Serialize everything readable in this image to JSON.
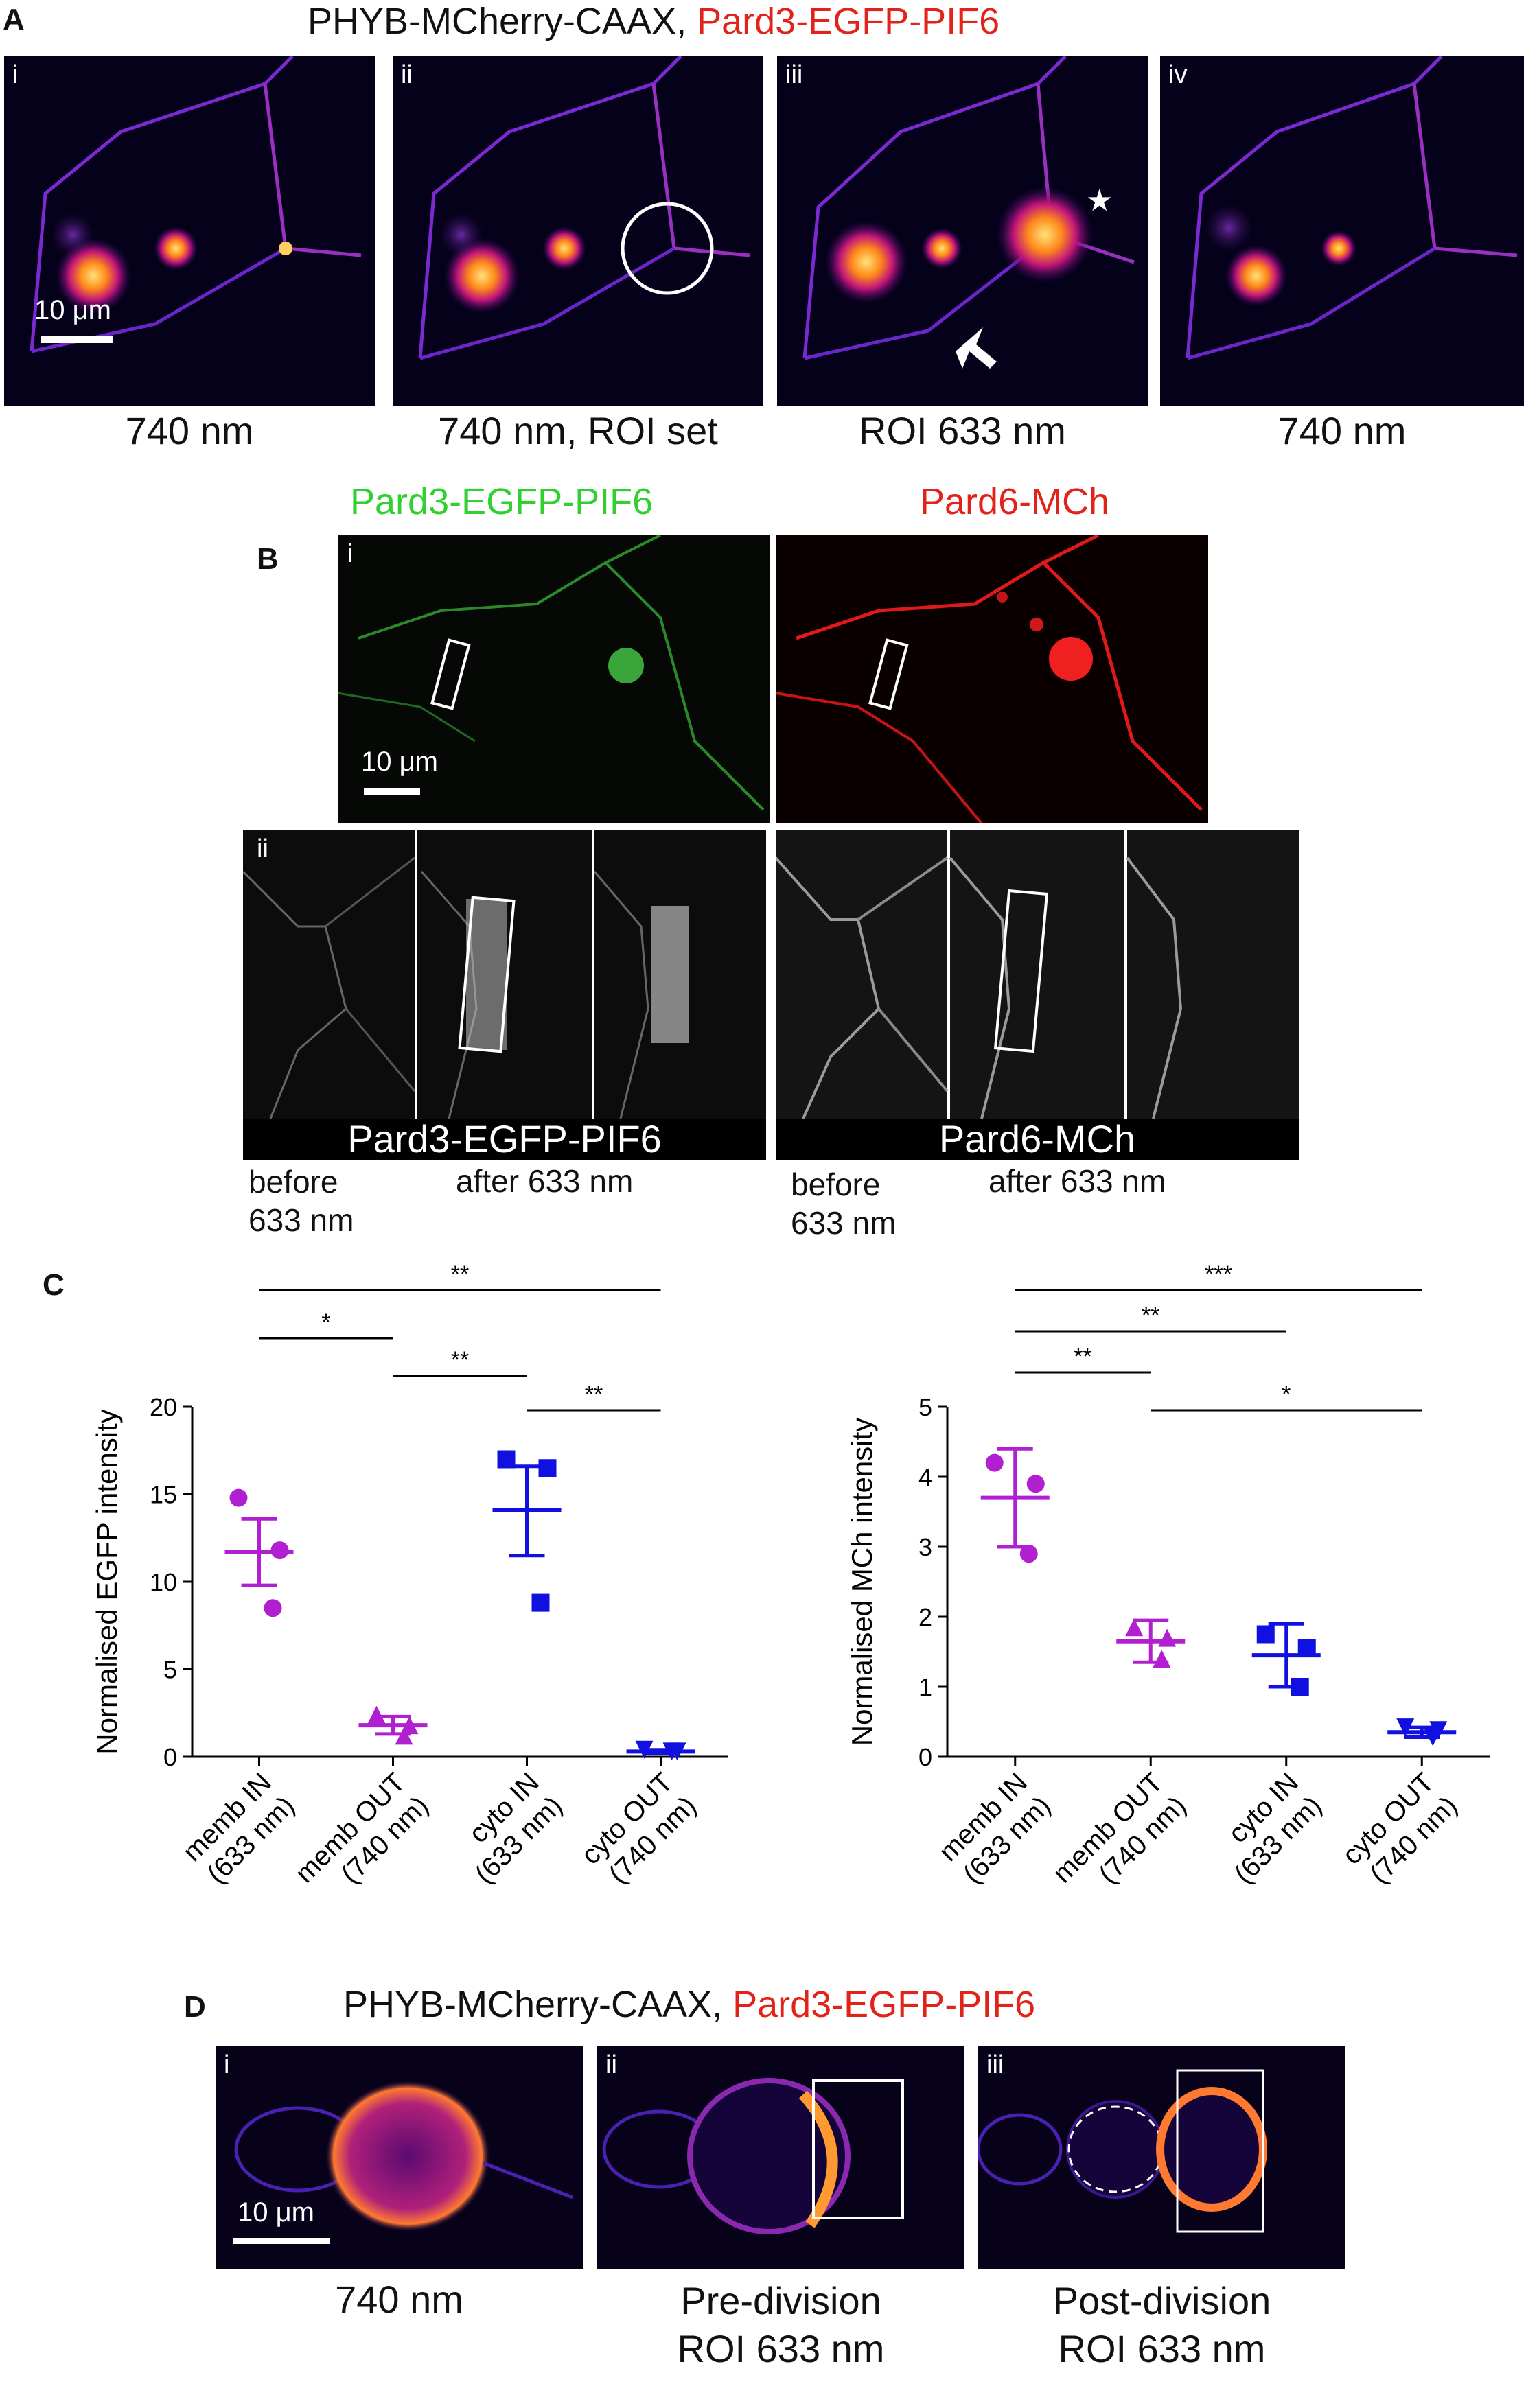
{
  "panelA": {
    "letter": "A",
    "title_black": "PHYB-MCherry-CAAX,",
    "title_red": "Pard3-EGFP-PIF6",
    "subpanels": [
      "i",
      "ii",
      "iii",
      "iv"
    ],
    "captions": [
      "740 nm",
      "740 nm, ROI set",
      "ROI 633 nm",
      "740 nm"
    ],
    "scale": "10 μm"
  },
  "panelB": {
    "letter": "B",
    "label_green": "Pard3-EGFP-PIF6",
    "label_red": "Pard6-MCh",
    "sub_i": "i",
    "sub_ii": "ii",
    "scale": "10 μm",
    "strip_left": "Pard3-EGFP-PIF6",
    "strip_right": "Pard6-MCh",
    "before_left": "before\n633 nm",
    "after_left": "after 633 nm",
    "before_right": "before\n633 nm",
    "after_right": "after 633 nm"
  },
  "panelC": {
    "letter": "C"
  },
  "chart_data": [
    {
      "type": "scatter",
      "ylabel": "Normalised EGFP intensity",
      "ylim": [
        0,
        20
      ],
      "yticks": [
        "0",
        "5",
        "10",
        "15",
        "20"
      ],
      "categories": [
        "memb IN (633 nm)",
        "memb OUT (740 nm)",
        "cyto IN (633 nm)",
        "cyto OUT (740 nm)"
      ],
      "category_lines": [
        [
          "memb IN",
          "(633 nm)"
        ],
        [
          "memb OUT",
          "(740 nm)"
        ],
        [
          "cyto IN",
          "(633 nm)"
        ],
        [
          "cyto OUT",
          "(740 nm)"
        ]
      ],
      "colors": [
        "#b020d0",
        "#b020d0",
        "#1010e0",
        "#1010e0"
      ],
      "markers": [
        "circle",
        "triangle",
        "square",
        "triangle-down"
      ],
      "points": [
        [
          14.8,
          11.8,
          8.5
        ],
        [
          2.4,
          1.8,
          1.2
        ],
        [
          17.0,
          16.5,
          8.8
        ],
        [
          0.4,
          0.3,
          0.3
        ]
      ],
      "mean": [
        11.7,
        1.8,
        14.1,
        0.3
      ],
      "sem_low": [
        9.8,
        1.3,
        11.5,
        0.2
      ],
      "sem_high": [
        13.6,
        2.3,
        16.6,
        0.4
      ],
      "significance": [
        {
          "from": 0,
          "to": 3,
          "label": "**"
        },
        {
          "from": 0,
          "to": 1,
          "label": "*"
        },
        {
          "from": 1,
          "to": 2,
          "label": "**"
        },
        {
          "from": 2,
          "to": 3,
          "label": "**"
        }
      ]
    },
    {
      "type": "scatter",
      "ylabel": "Normalised MCh intensity",
      "ylim": [
        0,
        5
      ],
      "yticks": [
        "0",
        "1",
        "2",
        "3",
        "4",
        "5"
      ],
      "categories": [
        "memb IN (633 nm)",
        "memb OUT (740 nm)",
        "cyto IN (633 nm)",
        "cyto OUT (740 nm)"
      ],
      "category_lines": [
        [
          "memb IN",
          "(633 nm)"
        ],
        [
          "memb OUT",
          "(740 nm)"
        ],
        [
          "cyto IN",
          "(633 nm)"
        ],
        [
          "cyto OUT",
          "(740 nm)"
        ]
      ],
      "colors": [
        "#b020d0",
        "#b020d0",
        "#1010e0",
        "#1010e0"
      ],
      "markers": [
        "circle",
        "triangle",
        "square",
        "triangle-down"
      ],
      "points": [
        [
          4.2,
          3.9,
          2.9
        ],
        [
          1.85,
          1.7,
          1.4
        ],
        [
          1.75,
          1.55,
          1.0
        ],
        [
          0.42,
          0.38,
          0.28
        ]
      ],
      "mean": [
        3.7,
        1.65,
        1.45,
        0.35
      ],
      "sem_low": [
        3.0,
        1.35,
        1.0,
        0.28
      ],
      "sem_high": [
        4.4,
        1.95,
        1.9,
        0.42
      ],
      "significance": [
        {
          "from": 0,
          "to": 3,
          "label": "***"
        },
        {
          "from": 0,
          "to": 2,
          "label": "**"
        },
        {
          "from": 0,
          "to": 1,
          "label": "**"
        },
        {
          "from": 1,
          "to": 3,
          "label": "*"
        }
      ]
    }
  ],
  "panelD": {
    "letter": "D",
    "title_black": "PHYB-MCherry-CAAX,",
    "title_red": "Pard3-EGFP-PIF6",
    "subpanels": [
      "i",
      "ii",
      "iii"
    ],
    "captions": [
      [
        "740 nm"
      ],
      [
        "Pre-division",
        "ROI 633 nm"
      ],
      [
        "Post-division",
        "ROI 633 nm"
      ]
    ],
    "scale": "10 μm"
  },
  "colors": {
    "memb": "#b020d0",
    "cyto": "#1010e0",
    "red_label": "#e2231a",
    "green_label": "#2fd02f"
  }
}
